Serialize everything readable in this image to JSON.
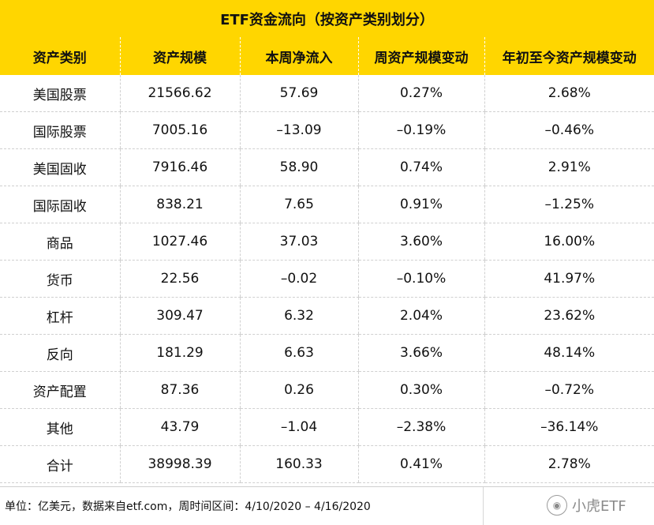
{
  "title": "ETF资金流向（按资产类别划分）",
  "headers": [
    "资产类别",
    "资产规模",
    "本周净流入",
    "周资产规模变动",
    "年初至今资产规模变动"
  ],
  "rows": [
    [
      "美国股票",
      "21566.62",
      "57.69",
      "0.27%",
      "2.68%"
    ],
    [
      "国际股票",
      "7005.16",
      "–13.09",
      "–0.19%",
      "–0.46%"
    ],
    [
      "美国固收",
      "7916.46",
      "58.90",
      "0.74%",
      "2.91%"
    ],
    [
      "国际固收",
      "838.21",
      "7.65",
      "0.91%",
      "–1.25%"
    ],
    [
      "商品",
      "1027.46",
      "37.03",
      "3.60%",
      "16.00%"
    ],
    [
      "货币",
      "22.56",
      "–0.02",
      "–0.10%",
      "41.97%"
    ],
    [
      "杠杆",
      "309.47",
      "6.32",
      "2.04%",
      "23.62%"
    ],
    [
      "反向",
      "181.29",
      "6.63",
      "3.66%",
      "48.14%"
    ],
    [
      "资产配置",
      "87.36",
      "0.26",
      "0.30%",
      "–0.72%"
    ],
    [
      "其他",
      "43.79",
      "–1.04",
      "–2.38%",
      "–36.14%"
    ],
    [
      "合计",
      "38998.39",
      "160.33",
      "0.41%",
      "2.78%"
    ]
  ],
  "footer": {
    "note": "单位：亿美元，数据来自etf.com，周时间区间：4/10/2020 – 4/16/2020",
    "watermark": "小虎ETF",
    "watermark_icon": "weibo-logo-icon"
  },
  "colors": {
    "accent": "#FFD600",
    "grid": "#d0d0d0"
  }
}
